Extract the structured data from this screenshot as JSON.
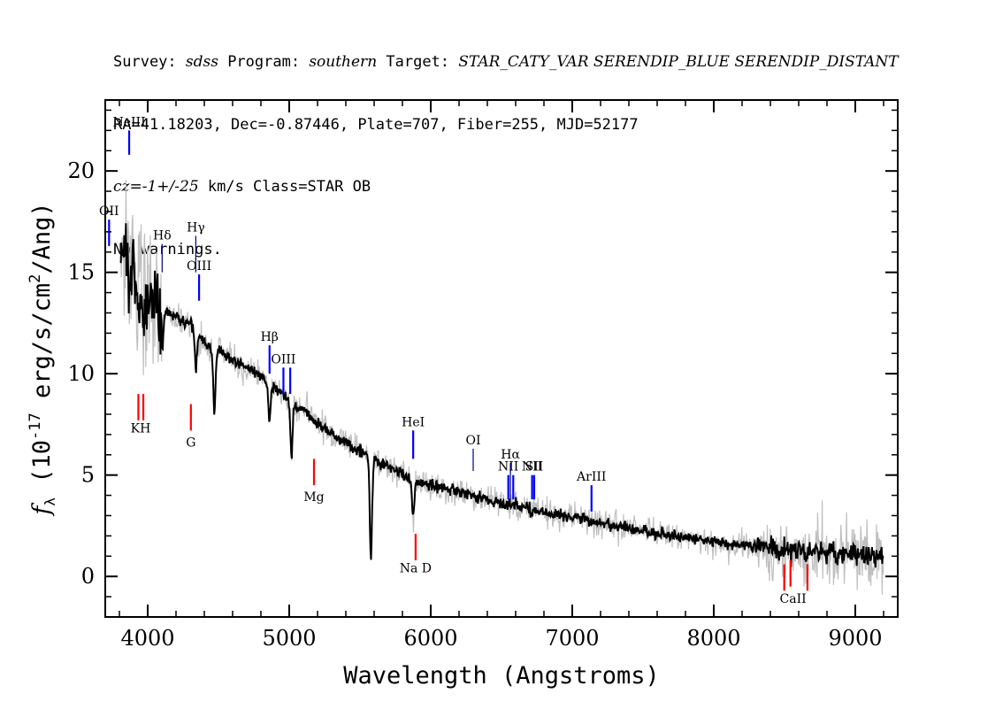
{
  "header": {
    "line1": [
      {
        "text": "Survey: ",
        "italic": false
      },
      {
        "text": "sdss",
        "italic": true
      },
      {
        "text": " Program: ",
        "italic": false
      },
      {
        "text": "southern",
        "italic": true
      },
      {
        "text": " Target: ",
        "italic": false
      },
      {
        "text": "STAR_CATY_VAR SERENDIP_BLUE SERENDIP_DISTANT",
        "italic": true
      }
    ],
    "line2": "RA=41.18203, Dec=-0.87446, Plate=707, Fiber=255, MJD=52177",
    "line3": [
      {
        "text": "cz=-1+/-25",
        "italic": true
      },
      {
        "text": " km/s Class=STAR OB",
        "italic": false
      }
    ],
    "line4": "No warnings."
  },
  "chart_data": {
    "type": "line",
    "xlabel": "Wavelength (Angstroms)",
    "ylabel": "f_λ (10^-17 erg/s/cm^2/Ang)",
    "xlim": [
      3700,
      9300
    ],
    "ylim": [
      -2,
      23.5
    ],
    "xticks": [
      4000,
      5000,
      6000,
      7000,
      8000,
      9000
    ],
    "yticks": [
      0,
      5,
      10,
      15,
      20
    ],
    "series": [
      {
        "role": "flux",
        "color": "#000000",
        "points": [
          [
            3800,
            16.5
          ],
          [
            3850,
            16.0
          ],
          [
            3900,
            15.0
          ],
          [
            3950,
            14.8
          ],
          [
            4000,
            14.2
          ],
          [
            4050,
            13.8
          ],
          [
            4100,
            13.2
          ],
          [
            4150,
            13.0
          ],
          [
            4200,
            12.8
          ],
          [
            4250,
            12.5
          ],
          [
            4300,
            12.6
          ],
          [
            4350,
            12.0
          ],
          [
            4400,
            11.6
          ],
          [
            4450,
            11.2
          ],
          [
            4500,
            11.3
          ],
          [
            4550,
            10.9
          ],
          [
            4600,
            10.7
          ],
          [
            4650,
            10.5
          ],
          [
            4700,
            10.3
          ],
          [
            4750,
            10.1
          ],
          [
            4800,
            9.9
          ],
          [
            4850,
            9.5
          ],
          [
            4900,
            9.3
          ],
          [
            4950,
            9.0
          ],
          [
            5000,
            8.7
          ],
          [
            5050,
            8.4
          ],
          [
            5100,
            8.2
          ],
          [
            5150,
            7.9
          ],
          [
            5200,
            7.6
          ],
          [
            5300,
            7.0
          ],
          [
            5400,
            6.6
          ],
          [
            5500,
            6.2
          ],
          [
            5600,
            5.8
          ],
          [
            5700,
            5.4
          ],
          [
            5800,
            5.1
          ],
          [
            5850,
            4.8
          ],
          [
            5900,
            4.7
          ],
          [
            6000,
            4.5
          ],
          [
            6100,
            4.3
          ],
          [
            6200,
            4.2
          ],
          [
            6300,
            4.0
          ],
          [
            6400,
            3.8
          ],
          [
            6500,
            3.6
          ],
          [
            6600,
            3.5
          ],
          [
            6700,
            3.3
          ],
          [
            6800,
            3.2
          ],
          [
            6900,
            3.0
          ],
          [
            7000,
            2.9
          ],
          [
            7100,
            2.8
          ],
          [
            7200,
            2.6
          ],
          [
            7300,
            2.5
          ],
          [
            7400,
            2.4
          ],
          [
            7500,
            2.3
          ],
          [
            7600,
            2.1
          ],
          [
            7700,
            2.0
          ],
          [
            7800,
            1.9
          ],
          [
            7900,
            1.8
          ],
          [
            8000,
            1.7
          ],
          [
            8100,
            1.6
          ],
          [
            8200,
            1.6
          ],
          [
            8300,
            1.5
          ],
          [
            8400,
            1.4
          ],
          [
            8500,
            1.3
          ],
          [
            8600,
            1.3
          ],
          [
            8700,
            1.2
          ],
          [
            8800,
            1.2
          ],
          [
            8900,
            1.1
          ],
          [
            9000,
            1.1
          ],
          [
            9100,
            1.0
          ],
          [
            9200,
            1.0
          ]
        ]
      },
      {
        "role": "error",
        "color": "#bfbfbf"
      }
    ],
    "absorption_features": [
      {
        "x": 3934,
        "depth": 1.5
      },
      {
        "x": 3969,
        "depth": 1.5
      },
      {
        "x": 4102,
        "depth": 2.0
      },
      {
        "x": 4340,
        "depth": 1.8
      },
      {
        "x": 4471,
        "depth": 3.0
      },
      {
        "x": 4861,
        "depth": 1.8
      },
      {
        "x": 5016,
        "depth": 2.5
      },
      {
        "x": 5577,
        "depth": 5.0
      },
      {
        "x": 5876,
        "depth": 1.8
      }
    ],
    "emission_lines": [
      {
        "label": "NeIII",
        "x": 3869,
        "y1": 22.0,
        "y2": 20.8,
        "color": "#0000ff"
      },
      {
        "label": "OII",
        "x": 3727,
        "y1": 17.6,
        "y2": 16.3,
        "color": "#0000ff"
      },
      {
        "label": "Hδ",
        "x": 4102,
        "y1": 16.4,
        "y2": 15.0,
        "color": "#000080"
      },
      {
        "label": "Hγ",
        "x": 4340,
        "y1": 16.8,
        "y2": 15.0,
        "color": "#000080"
      },
      {
        "label": "OIII",
        "x": 4363,
        "y1": 14.9,
        "y2": 13.6,
        "color": "#0000ff"
      },
      {
        "label": "Hβ",
        "x": 4861,
        "y1": 11.4,
        "y2": 10.0,
        "color": "#0000ff"
      },
      {
        "label": "OIII",
        "x": 4959,
        "y1": 10.3,
        "y2": 9.0,
        "color": "#0000ff"
      },
      {
        "label": "",
        "x": 5007,
        "y1": 10.3,
        "y2": 9.0,
        "color": "#0000ff"
      },
      {
        "label": "HeI",
        "x": 5876,
        "y1": 7.2,
        "y2": 5.8,
        "color": "#0000ff"
      },
      {
        "label": "OI",
        "x": 6300,
        "y1": 6.3,
        "y2": 5.2,
        "color": "#000080"
      },
      {
        "label": "NII",
        "x": 6548,
        "y1": 5.0,
        "y2": 3.8,
        "color": "#0000ff"
      },
      {
        "label": "Hα",
        "x": 6563,
        "y1": 5.6,
        "y2": 3.8,
        "color": "#000080"
      },
      {
        "label": "",
        "x": 6583,
        "y1": 5.0,
        "y2": 3.8,
        "color": "#0000ff"
      },
      {
        "label": "NII",
        "x": 6716,
        "y1": 5.0,
        "y2": 3.8,
        "color": "#0000ff"
      },
      {
        "label": "SII",
        "x": 6731,
        "y1": 5.0,
        "y2": 3.8,
        "color": "#0000ff"
      },
      {
        "label": "ArIII",
        "x": 7136,
        "y1": 4.5,
        "y2": 3.2,
        "color": "#0000ff"
      }
    ],
    "absorption_lines": [
      {
        "label": "",
        "x": 3934,
        "y1": 9.0,
        "y2": 7.7,
        "color": "#ff0000"
      },
      {
        "label": "",
        "x": 3969,
        "y1": 9.0,
        "y2": 7.7,
        "color": "#ff0000"
      },
      {
        "label": "G",
        "x": 4305,
        "y1": 8.5,
        "y2": 7.2,
        "color": "#ff0000"
      },
      {
        "label": "Mg",
        "x": 5175,
        "y1": 5.8,
        "y2": 4.5,
        "color": "#ff0000"
      },
      {
        "label": "",
        "x": 5893,
        "y1": 2.1,
        "y2": 0.8,
        "color": "#ff0000"
      },
      {
        "label": "",
        "x": 8498,
        "y1": 0.6,
        "y2": -0.7,
        "color": "#ff0000"
      },
      {
        "label": "",
        "x": 8542,
        "y1": 0.8,
        "y2": -0.5,
        "color": "#ff0000"
      },
      {
        "label": "",
        "x": 8662,
        "y1": 0.6,
        "y2": -0.7,
        "color": "#ff0000"
      }
    ],
    "group_labels": [
      {
        "label": "KH",
        "x": 3950,
        "y": 7.1
      },
      {
        "label": "Na  D",
        "x": 5893,
        "y": 0.2
      },
      {
        "label": "CaII",
        "x": 8560,
        "y": -1.3
      }
    ]
  }
}
